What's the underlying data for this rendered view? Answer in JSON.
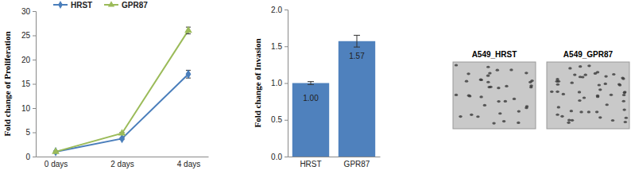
{
  "chart_data": [
    {
      "type": "line",
      "y_label": "Fold change of Proliferation",
      "categories": [
        "0 days",
        "2 days",
        "4 days"
      ],
      "series": [
        {
          "name": "HRST",
          "color": "#4a7ebb",
          "marker": "diamond",
          "values": [
            1,
            3.7,
            17
          ],
          "errors": [
            0.1,
            0.2,
            0.8
          ]
        },
        {
          "name": "GPR87",
          "color": "#9bbb59",
          "marker": "triangle",
          "values": [
            1,
            4.8,
            26
          ],
          "errors": [
            0.1,
            0.2,
            0.7
          ]
        }
      ],
      "ylim": [
        0,
        30
      ],
      "yticks": [
        0,
        5,
        10,
        15,
        20,
        25,
        30
      ],
      "grid": false,
      "legend": "top"
    },
    {
      "type": "bar",
      "y_label": "Fold change of Invasion",
      "categories": [
        "HRST",
        "GPR87"
      ],
      "values": [
        1.0,
        1.57
      ],
      "value_labels": [
        "1.00",
        "1.57"
      ],
      "errors": [
        0.02,
        0.08
      ],
      "color": "#4f81bd",
      "ylim": [
        0,
        2
      ],
      "yticks": [
        {
          "value": 0,
          "label": "0.0"
        },
        {
          "value": 0.5,
          "label": "0.5"
        },
        {
          "value": 1,
          "label": "1.0"
        },
        {
          "value": 1.5,
          "label": "1.5"
        },
        {
          "value": 2,
          "label": "2.0"
        }
      ],
      "grid": false,
      "data_labels": true
    }
  ],
  "images": {
    "labels": [
      "A549_HRST",
      "A549_GPR87"
    ]
  }
}
